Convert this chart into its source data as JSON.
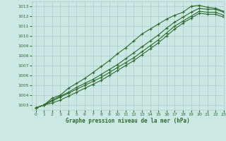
{
  "title": "Graphe pression niveau de la mer (hPa)",
  "bg_color": "#cce8e4",
  "grid_color": "#aacccc",
  "line_color": "#2d6a2d",
  "xlim": [
    -0.5,
    23
  ],
  "ylim": [
    1002.5,
    1013.5
  ],
  "xticks": [
    0,
    1,
    2,
    3,
    4,
    5,
    6,
    7,
    8,
    9,
    10,
    11,
    12,
    13,
    14,
    15,
    16,
    17,
    18,
    19,
    20,
    21,
    22,
    23
  ],
  "yticks": [
    1003,
    1004,
    1005,
    1006,
    1007,
    1008,
    1009,
    1010,
    1011,
    1012,
    1013
  ],
  "series": [
    [
      1002.7,
      1003.0,
      1003.7,
      1004.0,
      1004.7,
      1005.2,
      1005.7,
      1006.3,
      1006.9,
      1007.5,
      1008.2,
      1008.8,
      1009.5,
      1010.2,
      1010.7,
      1011.2,
      1011.7,
      1012.1,
      1012.4,
      1013.0,
      1013.1,
      1012.9,
      1012.8,
      1012.5
    ],
    [
      1002.7,
      1003.0,
      1003.5,
      1003.9,
      1004.3,
      1004.8,
      1005.2,
      1005.6,
      1006.1,
      1006.6,
      1007.1,
      1007.7,
      1008.3,
      1008.9,
      1009.5,
      1010.1,
      1010.8,
      1011.4,
      1011.9,
      1012.4,
      1012.8,
      1012.7,
      1012.7,
      1012.4
    ],
    [
      1002.7,
      1003.0,
      1003.4,
      1003.8,
      1004.2,
      1004.6,
      1005.0,
      1005.4,
      1005.8,
      1006.3,
      1006.8,
      1007.3,
      1007.8,
      1008.4,
      1009.0,
      1009.6,
      1010.3,
      1011.0,
      1011.5,
      1012.0,
      1012.5,
      1012.4,
      1012.4,
      1012.1
    ],
    [
      1002.7,
      1003.0,
      1003.2,
      1003.5,
      1003.9,
      1004.3,
      1004.7,
      1005.1,
      1005.5,
      1006.0,
      1006.5,
      1007.0,
      1007.5,
      1008.1,
      1008.7,
      1009.3,
      1010.0,
      1010.7,
      1011.3,
      1011.8,
      1012.3,
      1012.2,
      1012.2,
      1011.9
    ]
  ]
}
